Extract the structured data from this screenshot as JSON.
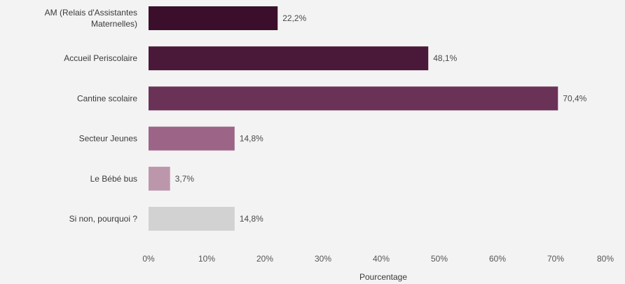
{
  "chart_data": {
    "type": "bar",
    "orientation": "horizontal",
    "categories": [
      [
        "AM (Relais d'Assistantes",
        "Maternelles)"
      ],
      [
        "Accueil Periscolaire"
      ],
      [
        "Cantine scolaire"
      ],
      [
        "Secteur Jeunes"
      ],
      [
        "Le Bébé bus"
      ],
      [
        "Si non, pourquoi ?"
      ]
    ],
    "values": [
      22.2,
      48.1,
      70.4,
      14.8,
      3.7,
      14.8
    ],
    "value_labels": [
      "22,2%",
      "48,1%",
      "70,4%",
      "14,8%",
      "3,7%",
      "14,8%"
    ],
    "colors": [
      "#3b0f2b",
      "#4a1838",
      "#6b3258",
      "#9c6587",
      "#bc97ac",
      "#d2d2d2"
    ],
    "xlim": [
      0,
      80
    ],
    "xticks": [
      0,
      10,
      20,
      30,
      40,
      50,
      60,
      70,
      80
    ],
    "xtick_labels": [
      "0%",
      "10%",
      "20%",
      "30%",
      "40%",
      "50%",
      "60%",
      "70%",
      "80%"
    ],
    "xlabel": "Pourcentage",
    "grid": false
  }
}
